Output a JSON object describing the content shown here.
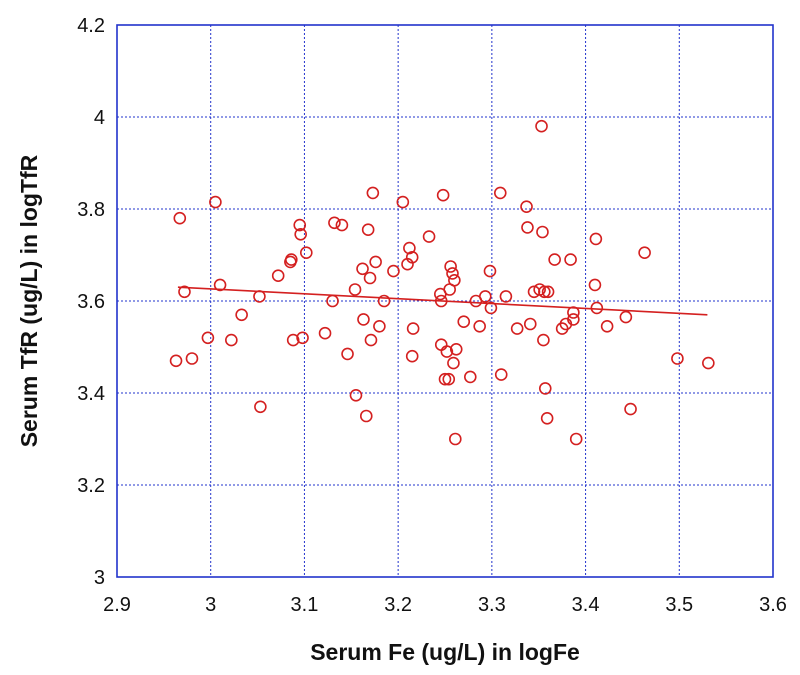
{
  "chart_data": {
    "type": "scatter",
    "title": "",
    "xlabel": "Serum Fe (ug/L) in logFe",
    "ylabel": "Serum TfR (ug/L) in logTfR",
    "xlim": [
      2.9,
      3.6
    ],
    "ylim": [
      3.0,
      4.2
    ],
    "xticks": [
      "2.9",
      "3",
      "3.1",
      "3.2",
      "3.3",
      "3.4",
      "3.5",
      "3.6"
    ],
    "yticks": [
      "3",
      "3.2",
      "3.4",
      "3.6",
      "3.8",
      "4",
      "4.2"
    ],
    "grid": true,
    "colors": {
      "points": "#d42020",
      "fit_line": "#d42020",
      "grid": "#2233cc",
      "frame": "#2233cc"
    },
    "trend_line": {
      "x": [
        2.965,
        3.53
      ],
      "y": [
        3.63,
        3.57
      ]
    },
    "points": [
      {
        "x": 2.963,
        "y": 3.47
      },
      {
        "x": 2.967,
        "y": 3.78
      },
      {
        "x": 2.972,
        "y": 3.62
      },
      {
        "x": 2.98,
        "y": 3.475
      },
      {
        "x": 2.997,
        "y": 3.52
      },
      {
        "x": 3.005,
        "y": 3.815
      },
      {
        "x": 3.01,
        "y": 3.635
      },
      {
        "x": 3.022,
        "y": 3.515
      },
      {
        "x": 3.033,
        "y": 3.57
      },
      {
        "x": 3.052,
        "y": 3.61
      },
      {
        "x": 3.053,
        "y": 3.37
      },
      {
        "x": 3.072,
        "y": 3.655
      },
      {
        "x": 3.085,
        "y": 3.685
      },
      {
        "x": 3.086,
        "y": 3.69
      },
      {
        "x": 3.088,
        "y": 3.515
      },
      {
        "x": 3.095,
        "y": 3.765
      },
      {
        "x": 3.096,
        "y": 3.745
      },
      {
        "x": 3.098,
        "y": 3.52
      },
      {
        "x": 3.102,
        "y": 3.705
      },
      {
        "x": 3.122,
        "y": 3.53
      },
      {
        "x": 3.13,
        "y": 3.6
      },
      {
        "x": 3.132,
        "y": 3.77
      },
      {
        "x": 3.14,
        "y": 3.765
      },
      {
        "x": 3.146,
        "y": 3.485
      },
      {
        "x": 3.154,
        "y": 3.625
      },
      {
        "x": 3.155,
        "y": 3.395
      },
      {
        "x": 3.162,
        "y": 3.67
      },
      {
        "x": 3.163,
        "y": 3.56
      },
      {
        "x": 3.166,
        "y": 3.35
      },
      {
        "x": 3.168,
        "y": 3.755
      },
      {
        "x": 3.17,
        "y": 3.65
      },
      {
        "x": 3.171,
        "y": 3.515
      },
      {
        "x": 3.173,
        "y": 3.835
      },
      {
        "x": 3.176,
        "y": 3.685
      },
      {
        "x": 3.18,
        "y": 3.545
      },
      {
        "x": 3.185,
        "y": 3.6
      },
      {
        "x": 3.195,
        "y": 3.665
      },
      {
        "x": 3.205,
        "y": 3.815
      },
      {
        "x": 3.21,
        "y": 3.68
      },
      {
        "x": 3.212,
        "y": 3.715
      },
      {
        "x": 3.215,
        "y": 3.695
      },
      {
        "x": 3.215,
        "y": 3.48
      },
      {
        "x": 3.216,
        "y": 3.54
      },
      {
        "x": 3.233,
        "y": 3.74
      },
      {
        "x": 3.245,
        "y": 3.615
      },
      {
        "x": 3.246,
        "y": 3.6
      },
      {
        "x": 3.246,
        "y": 3.505
      },
      {
        "x": 3.248,
        "y": 3.83
      },
      {
        "x": 3.25,
        "y": 3.43
      },
      {
        "x": 3.252,
        "y": 3.49
      },
      {
        "x": 3.254,
        "y": 3.43
      },
      {
        "x": 3.255,
        "y": 3.625
      },
      {
        "x": 3.256,
        "y": 3.675
      },
      {
        "x": 3.258,
        "y": 3.66
      },
      {
        "x": 3.259,
        "y": 3.465
      },
      {
        "x": 3.26,
        "y": 3.645
      },
      {
        "x": 3.261,
        "y": 3.3
      },
      {
        "x": 3.262,
        "y": 3.495
      },
      {
        "x": 3.27,
        "y": 3.555
      },
      {
        "x": 3.277,
        "y": 3.435
      },
      {
        "x": 3.283,
        "y": 3.6
      },
      {
        "x": 3.287,
        "y": 3.545
      },
      {
        "x": 3.293,
        "y": 3.61
      },
      {
        "x": 3.298,
        "y": 3.665
      },
      {
        "x": 3.299,
        "y": 3.585
      },
      {
        "x": 3.309,
        "y": 3.835
      },
      {
        "x": 3.31,
        "y": 3.44
      },
      {
        "x": 3.315,
        "y": 3.61
      },
      {
        "x": 3.327,
        "y": 3.54
      },
      {
        "x": 3.337,
        "y": 3.805
      },
      {
        "x": 3.338,
        "y": 3.76
      },
      {
        "x": 3.341,
        "y": 3.55
      },
      {
        "x": 3.345,
        "y": 3.62
      },
      {
        "x": 3.351,
        "y": 3.625
      },
      {
        "x": 3.353,
        "y": 3.98
      },
      {
        "x": 3.354,
        "y": 3.75
      },
      {
        "x": 3.355,
        "y": 3.515
      },
      {
        "x": 3.356,
        "y": 3.62
      },
      {
        "x": 3.357,
        "y": 3.41
      },
      {
        "x": 3.359,
        "y": 3.345
      },
      {
        "x": 3.36,
        "y": 3.62
      },
      {
        "x": 3.367,
        "y": 3.69
      },
      {
        "x": 3.375,
        "y": 3.54
      },
      {
        "x": 3.379,
        "y": 3.55
      },
      {
        "x": 3.384,
        "y": 3.69
      },
      {
        "x": 3.387,
        "y": 3.575
      },
      {
        "x": 3.39,
        "y": 3.3
      },
      {
        "x": 3.387,
        "y": 3.56
      },
      {
        "x": 3.41,
        "y": 3.635
      },
      {
        "x": 3.411,
        "y": 3.735
      },
      {
        "x": 3.412,
        "y": 3.585
      },
      {
        "x": 3.423,
        "y": 3.545
      },
      {
        "x": 3.443,
        "y": 3.565
      },
      {
        "x": 3.448,
        "y": 3.365
      },
      {
        "x": 3.463,
        "y": 3.705
      },
      {
        "x": 3.498,
        "y": 3.475
      },
      {
        "x": 3.531,
        "y": 3.465
      }
    ]
  }
}
